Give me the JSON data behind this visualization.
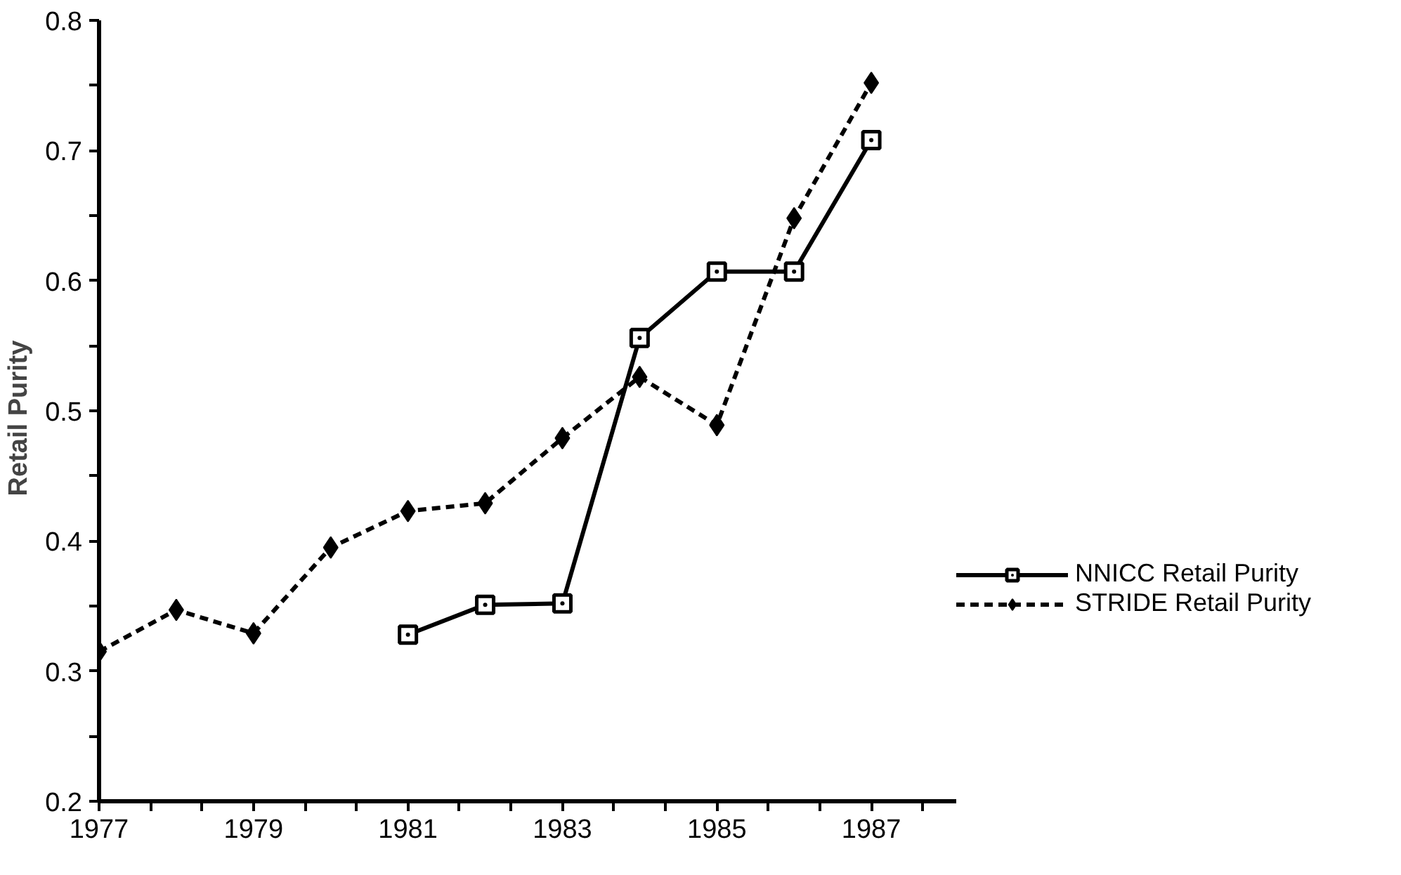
{
  "chart_data": {
    "type": "line",
    "ylabel": "Retail   Purity",
    "x": [
      1977,
      1978,
      1979,
      1980,
      1981,
      1982,
      1983,
      1984,
      1985,
      1986,
      1987
    ],
    "series": [
      {
        "name": "NNICC Retail Purity",
        "color": "#000000",
        "marker": "square",
        "line_style": "solid",
        "values": [
          null,
          null,
          null,
          null,
          0.328,
          0.351,
          0.352,
          0.556,
          0.607,
          0.607,
          0.708
        ]
      },
      {
        "name": "STRIDE Retail Purity",
        "color": "#000000",
        "marker": "diamond",
        "line_style": "dashed",
        "values": [
          0.315,
          0.347,
          0.329,
          0.395,
          0.423,
          0.429,
          0.479,
          0.526,
          0.489,
          0.648,
          0.752
        ]
      }
    ],
    "xlim": [
      1977,
      1988.1
    ],
    "ylim": [
      0.2,
      0.8
    ],
    "xticks": [
      1977,
      {
        "value": 1977.667,
        "label": null
      },
      {
        "value": 1978.333,
        "label": null
      },
      1979,
      {
        "value": 1979.667,
        "label": null
      },
      {
        "value": 1980.333,
        "label": null
      },
      1981,
      {
        "value": 1981.667,
        "label": null
      },
      {
        "value": 1982.333,
        "label": null
      },
      1983,
      {
        "value": 1983.667,
        "label": null
      },
      {
        "value": 1984.333,
        "label": null
      },
      1985,
      {
        "value": 1985.667,
        "label": null
      },
      {
        "value": 1986.333,
        "label": null
      },
      1987,
      {
        "value": 1987.667,
        "label": null
      }
    ],
    "yticks": [
      0.2,
      {
        "value": 0.25,
        "label": null
      },
      0.3,
      {
        "value": 0.35,
        "label": null
      },
      0.4,
      {
        "value": 0.45,
        "label": null
      },
      0.5,
      {
        "value": 0.55,
        "label": null
      },
      0.6,
      {
        "value": 0.65,
        "label": null
      },
      0.7,
      {
        "value": 0.75,
        "label": null
      },
      0.8
    ],
    "grid": false,
    "legend": "right"
  }
}
